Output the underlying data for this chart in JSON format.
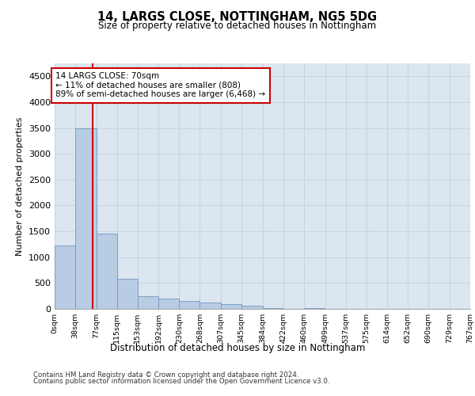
{
  "title1": "14, LARGS CLOSE, NOTTINGHAM, NG5 5DG",
  "title2": "Size of property relative to detached houses in Nottingham",
  "xlabel": "Distribution of detached houses by size in Nottingham",
  "ylabel": "Number of detached properties",
  "bar_color": "#b8cce4",
  "bar_edge_color": "#7096c0",
  "grid_color": "#c8d4e4",
  "background_color": "#dce6f0",
  "annotation_box_color": "#cc0000",
  "annotation_text": "14 LARGS CLOSE: 70sqm\n← 11% of detached houses are smaller (808)\n89% of semi-detached houses are larger (6,468) →",
  "vline_x": 70,
  "vline_color": "#cc0000",
  "bin_edges": [
    0,
    38,
    77,
    115,
    153,
    192,
    230,
    268,
    307,
    345,
    384,
    422,
    460,
    499,
    537,
    575,
    614,
    652,
    690,
    729,
    767
  ],
  "bar_heights": [
    1220,
    3500,
    1460,
    580,
    240,
    195,
    155,
    115,
    85,
    65,
    12,
    0,
    8,
    0,
    0,
    0,
    0,
    0,
    0,
    0
  ],
  "ylim": [
    0,
    4750
  ],
  "yticks": [
    0,
    500,
    1000,
    1500,
    2000,
    2500,
    3000,
    3500,
    4000,
    4500
  ],
  "footer_line1": "Contains HM Land Registry data © Crown copyright and database right 2024.",
  "footer_line2": "Contains public sector information licensed under the Open Government Licence v3.0."
}
